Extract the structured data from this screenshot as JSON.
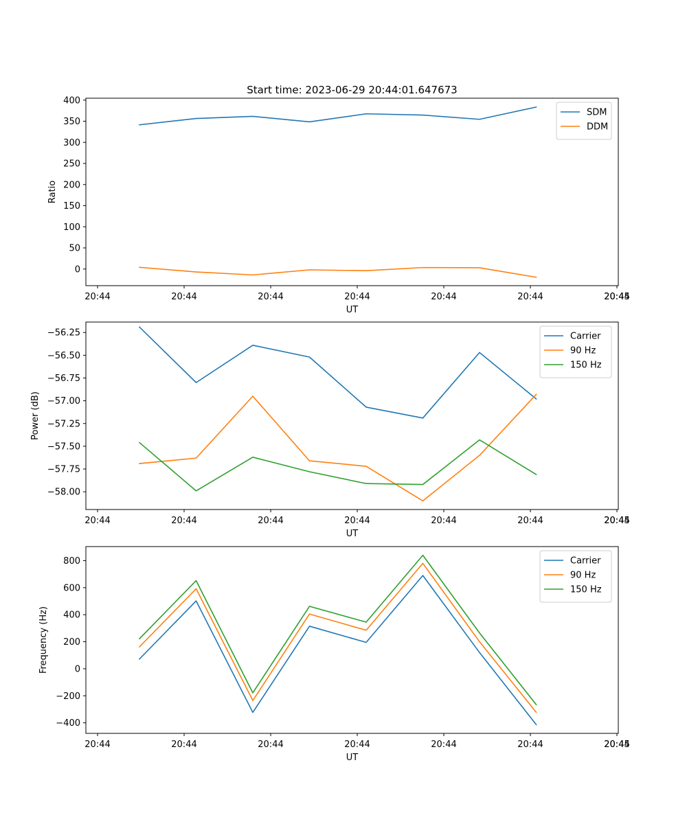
{
  "figure": {
    "title": "Start time: 2023-06-29 20:44:01.647673"
  },
  "chart_data": [
    {
      "type": "line",
      "xlabel": "UT",
      "ylabel": "Ratio",
      "x_tick_labels": [
        "20:44",
        "20:44",
        "20:44",
        "20:44",
        "20:44",
        "20:44",
        "20:44",
        "20:45"
      ],
      "y_ticks": [
        0,
        50,
        100,
        150,
        200,
        250,
        300,
        350,
        400
      ],
      "y_tick_labels": [
        "0",
        "50",
        "100",
        "150",
        "200",
        "250",
        "300",
        "350",
        "400"
      ],
      "ylim": [
        -39.4,
        404.5
      ],
      "legend_position": "top-right",
      "grid": false,
      "series": [
        {
          "name": "SDM",
          "color": "#1f77b4",
          "values": [
            341.5,
            356.5,
            361.5,
            348.5,
            367.5,
            364.5,
            354.5,
            383.5
          ]
        },
        {
          "name": "DDM",
          "color": "#ff7f0e",
          "values": [
            4.0,
            -7.0,
            -14.0,
            -2.0,
            -4.0,
            3.5,
            3.0,
            -19.5
          ]
        }
      ]
    },
    {
      "type": "line",
      "xlabel": "UT",
      "ylabel": "Power (dB)",
      "x_tick_labels": [
        "20:44",
        "20:44",
        "20:44",
        "20:44",
        "20:44",
        "20:44",
        "20:44",
        "20:45"
      ],
      "y_ticks": [
        -58.0,
        -57.75,
        -57.5,
        -57.25,
        -57.0,
        -56.75,
        -56.5,
        -56.25
      ],
      "y_tick_labels": [
        "−58.00",
        "−57.75",
        "−57.50",
        "−57.25",
        "−57.00",
        "−56.75",
        "−56.50",
        "−56.25"
      ],
      "ylim": [
        -58.195,
        -56.135
      ],
      "legend_position": "top-right",
      "grid": false,
      "series": [
        {
          "name": "Carrier",
          "color": "#1f77b4",
          "values": [
            -56.19,
            -56.8,
            -56.39,
            -56.52,
            -57.07,
            -57.19,
            -56.47,
            -56.98
          ]
        },
        {
          "name": "90 Hz",
          "color": "#ff7f0e",
          "values": [
            -57.69,
            -57.63,
            -56.95,
            -57.66,
            -57.72,
            -58.1,
            -57.6,
            -56.93
          ]
        },
        {
          "name": "150 Hz",
          "color": "#2ca02c",
          "values": [
            -57.46,
            -57.99,
            -57.62,
            -57.78,
            -57.91,
            -57.92,
            -57.43,
            -57.81
          ]
        }
      ]
    },
    {
      "type": "line",
      "xlabel": "UT",
      "ylabel": "Frequency (Hz)",
      "x_tick_labels": [
        "20:44",
        "20:44",
        "20:44",
        "20:44",
        "20:44",
        "20:44",
        "20:44",
        "20:45"
      ],
      "y_ticks": [
        -400,
        -200,
        0,
        200,
        400,
        600,
        800
      ],
      "y_tick_labels": [
        "−400",
        "−200",
        "0",
        "200",
        "400",
        "600",
        "800"
      ],
      "ylim": [
        -478,
        904
      ],
      "legend_position": "top-right",
      "grid": false,
      "series": [
        {
          "name": "Carrier",
          "color": "#1f77b4",
          "values": [
            72,
            502,
            -323,
            315,
            195,
            690,
            120,
            -413
          ]
        },
        {
          "name": "90 Hz",
          "color": "#ff7f0e",
          "values": [
            162,
            592,
            -235,
            405,
            285,
            780,
            200,
            -322
          ]
        },
        {
          "name": "150 Hz",
          "color": "#2ca02c",
          "values": [
            222,
            652,
            -178,
            462,
            345,
            840,
            265,
            -265
          ]
        }
      ]
    }
  ]
}
